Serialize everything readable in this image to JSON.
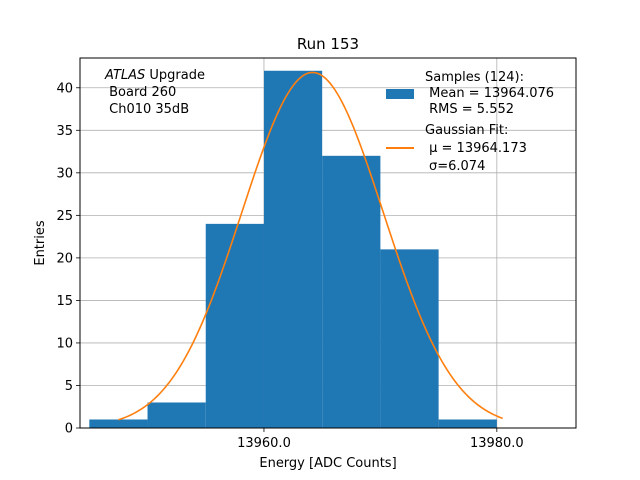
{
  "chart_data": {
    "type": "bar",
    "title": "Run 153",
    "xlabel": "Energy [ADC Counts]",
    "ylabel": "Entries",
    "xlim": [
      13944.2,
      13986.8
    ],
    "ylim": [
      0,
      43.5
    ],
    "grid": true,
    "x_ticks": [
      13960.0,
      13980.0
    ],
    "x_tick_labels": [
      "13960.0",
      "13980.0"
    ],
    "y_ticks": [
      0,
      5,
      10,
      15,
      20,
      25,
      30,
      35,
      40
    ],
    "y_tick_labels": [
      "0",
      "5",
      "10",
      "15",
      "20",
      "25",
      "30",
      "35",
      "40"
    ],
    "bin_edges": [
      13945,
      13950,
      13955,
      13960,
      13965,
      13970,
      13975,
      13980
    ],
    "bin_counts": [
      1,
      3,
      24,
      42,
      32,
      21,
      1
    ],
    "bar_color": "#1f77b4",
    "fit": {
      "name": "Gaussian Fit",
      "mu": 13964.173,
      "sigma": 6.074,
      "amplitude": 41.8,
      "x_range": [
        13947.5,
        13980.5
      ],
      "color": "#ff7f0e"
    },
    "annotation": {
      "italic_prefix": "ATLAS",
      "line1_rest": " Upgrade",
      "line2": " Board 260",
      "line3": " Ch010 35dB"
    },
    "legend": {
      "location": "upper right",
      "samples": {
        "title": "Samples (124):",
        "mean": " Mean = 13964.076",
        "rms": " RMS = 5.552"
      },
      "gaussian": {
        "title": "Gaussian Fit:",
        "mu_label": " μ = 13964.173",
        "sigma_label": "σ=6.074"
      }
    }
  }
}
